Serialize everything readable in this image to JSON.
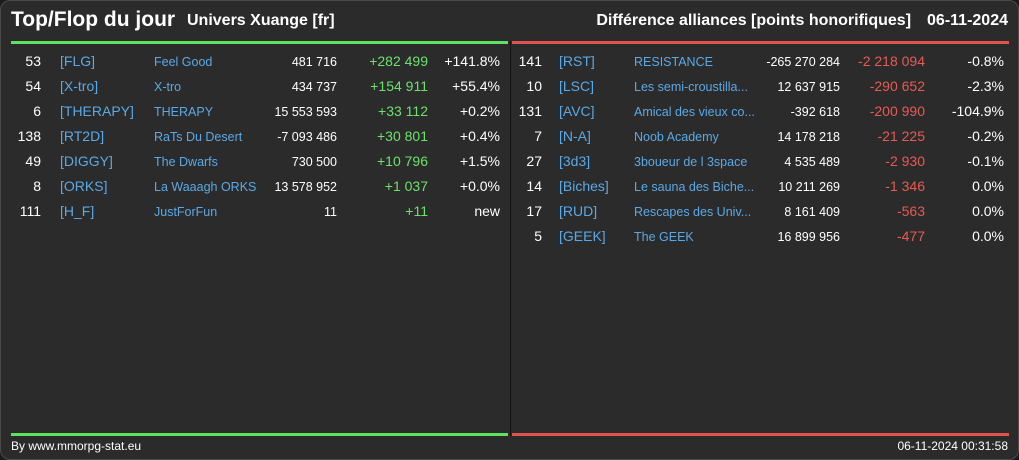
{
  "header": {
    "title": "Top/Flop du jour",
    "server": "Univers Xuange [fr]",
    "metric": "Différence alliances [points honorifiques]",
    "date": "06-11-2024"
  },
  "colors": {
    "accent_top": "#5ee35e",
    "accent_flop": "#e0534e",
    "tag_link": "#5aa9e6"
  },
  "top": [
    {
      "rank": "53",
      "tag": "[FLG]",
      "name": "Feel Good",
      "total": "481 716",
      "diff": "+282 499",
      "pct": "+141.8%"
    },
    {
      "rank": "54",
      "tag": "[X-tro]",
      "name": "X-tro",
      "total": "434 737",
      "diff": "+154 911",
      "pct": "+55.4%"
    },
    {
      "rank": "6",
      "tag": "[THERAPY]",
      "name": "THERAPY",
      "total": "15 553 593",
      "diff": "+33 112",
      "pct": "+0.2%"
    },
    {
      "rank": "138",
      "tag": "[RT2D]",
      "name": "RaTs Du Desert",
      "total": "-7 093 486",
      "diff": "+30 801",
      "pct": "+0.4%"
    },
    {
      "rank": "49",
      "tag": "[DIGGY]",
      "name": "The Dwarfs",
      "total": "730 500",
      "diff": "+10 796",
      "pct": "+1.5%"
    },
    {
      "rank": "8",
      "tag": "[ORKS]",
      "name": "La Waaagh ORKS",
      "total": "13 578 952",
      "diff": "+1 037",
      "pct": "+0.0%"
    },
    {
      "rank": "111",
      "tag": "[H_F]",
      "name": "JustForFun",
      "total": "11",
      "diff": "+11",
      "pct": "new"
    }
  ],
  "flop": [
    {
      "rank": "141",
      "tag": "[RST]",
      "name": "RESISTANCE",
      "total": "-265 270 284",
      "diff": "-2 218 094",
      "pct": "-0.8%"
    },
    {
      "rank": "10",
      "tag": "[LSC]",
      "name": "Les semi-croustilla...",
      "total": "12 637 915",
      "diff": "-290 652",
      "pct": "-2.3%"
    },
    {
      "rank": "131",
      "tag": "[AVC]",
      "name": "Amical des vieux co...",
      "total": "-392 618",
      "diff": "-200 990",
      "pct": "-104.9%"
    },
    {
      "rank": "7",
      "tag": "[N-A]",
      "name": "Noob Academy",
      "total": "14 178 218",
      "diff": "-21 225",
      "pct": "-0.2%"
    },
    {
      "rank": "27",
      "tag": "[3d3]",
      "name": "3boueur de l 3space",
      "total": "4 535 489",
      "diff": "-2 930",
      "pct": "-0.1%"
    },
    {
      "rank": "14",
      "tag": "[Biches]",
      "name": "Le sauna des Biche...",
      "total": "10 211 269",
      "diff": "-1 346",
      "pct": "0.0%"
    },
    {
      "rank": "17",
      "tag": "[RUD]",
      "name": "Rescapes des Univ...",
      "total": "8 161 409",
      "diff": "-563",
      "pct": "0.0%"
    },
    {
      "rank": "5",
      "tag": "[GEEK]",
      "name": "The GEEK",
      "total": "16 899 956",
      "diff": "-477",
      "pct": "0.0%"
    }
  ],
  "footer": {
    "credit": "By www.mmorpg-stat.eu",
    "timestamp": "06-11-2024 00:31:58"
  }
}
